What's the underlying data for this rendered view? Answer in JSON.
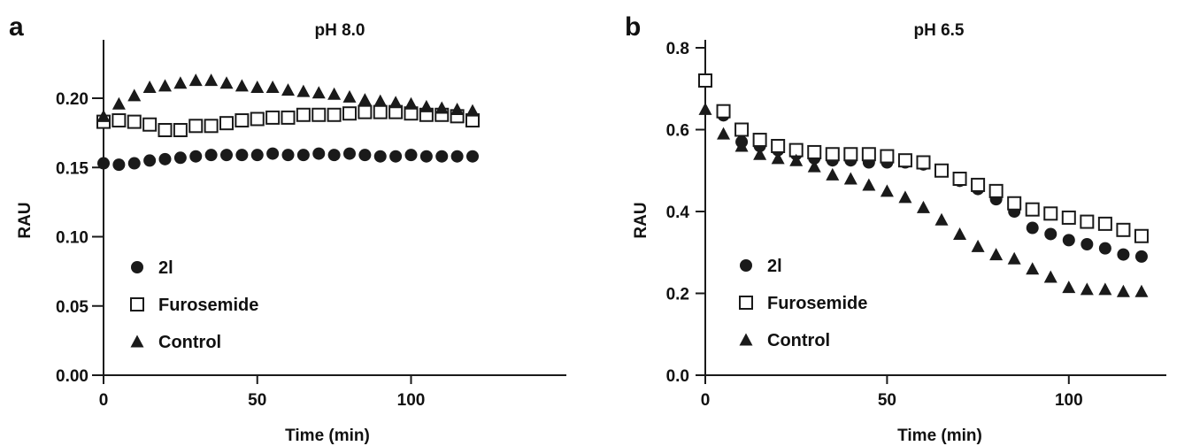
{
  "chart_data": [
    {
      "panel": "a",
      "type": "scatter",
      "title": "pH 8.0",
      "xlabel": "Time (min)",
      "ylabel": "RAU",
      "xlim": [
        0,
        125
      ],
      "ylim": [
        0,
        0.2
      ],
      "xticks": [
        "0",
        "50",
        "100"
      ],
      "xtick_values": [
        0,
        50,
        100
      ],
      "yticks": [
        "0.00",
        "0.05",
        "0.10",
        "0.15",
        "0.20"
      ],
      "ytick_values": [
        0,
        0.05,
        0.1,
        0.15,
        0.2
      ],
      "legend": "bottom-left",
      "series": [
        {
          "name": "2l",
          "marker": "circle",
          "x": [
            0,
            5,
            10,
            15,
            20,
            25,
            30,
            35,
            40,
            45,
            50,
            55,
            60,
            65,
            70,
            75,
            80,
            85,
            90,
            95,
            100,
            105,
            110,
            115,
            120
          ],
          "y": [
            0.153,
            0.152,
            0.153,
            0.155,
            0.156,
            0.157,
            0.158,
            0.159,
            0.159,
            0.159,
            0.159,
            0.16,
            0.159,
            0.159,
            0.16,
            0.159,
            0.16,
            0.159,
            0.158,
            0.158,
            0.159,
            0.158,
            0.158,
            0.158,
            0.158
          ]
        },
        {
          "name": "Furosemide",
          "marker": "open-square",
          "x": [
            0,
            5,
            10,
            15,
            20,
            25,
            30,
            35,
            40,
            45,
            50,
            55,
            60,
            65,
            70,
            75,
            80,
            85,
            90,
            95,
            100,
            105,
            110,
            115,
            120
          ],
          "y": [
            0.183,
            0.184,
            0.183,
            0.181,
            0.177,
            0.177,
            0.18,
            0.18,
            0.182,
            0.184,
            0.185,
            0.186,
            0.186,
            0.188,
            0.188,
            0.188,
            0.189,
            0.19,
            0.19,
            0.19,
            0.189,
            0.188,
            0.188,
            0.187,
            0.184
          ]
        },
        {
          "name": "Control",
          "marker": "triangle",
          "x": [
            0,
            5,
            10,
            15,
            20,
            25,
            30,
            35,
            40,
            45,
            50,
            55,
            60,
            65,
            70,
            75,
            80,
            85,
            90,
            95,
            100,
            105,
            110,
            115,
            120
          ],
          "y": [
            0.187,
            0.196,
            0.202,
            0.208,
            0.209,
            0.211,
            0.213,
            0.213,
            0.211,
            0.209,
            0.208,
            0.208,
            0.206,
            0.205,
            0.204,
            0.203,
            0.201,
            0.199,
            0.198,
            0.197,
            0.196,
            0.194,
            0.193,
            0.192,
            0.191
          ]
        }
      ]
    },
    {
      "panel": "b",
      "type": "scatter",
      "title": "pH 6.5",
      "xlabel": "Time (min)",
      "ylabel": "RAU",
      "xlim": [
        0,
        125
      ],
      "ylim": [
        0,
        0.8
      ],
      "xticks": [
        "0",
        "50",
        "100"
      ],
      "xtick_values": [
        0,
        50,
        100
      ],
      "yticks": [
        "0.0",
        "0.2",
        "0.4",
        "0.6",
        "0.8"
      ],
      "ytick_values": [
        0,
        0.2,
        0.4,
        0.6,
        0.8
      ],
      "legend": "bottom-left",
      "series": [
        {
          "name": "2l",
          "marker": "circle",
          "x": [
            0,
            5,
            10,
            15,
            20,
            25,
            30,
            35,
            40,
            45,
            50,
            55,
            60,
            65,
            70,
            75,
            80,
            85,
            90,
            95,
            100,
            105,
            110,
            115,
            120
          ],
          "y": [
            0.72,
            0.635,
            0.57,
            0.56,
            0.55,
            0.54,
            0.53,
            0.525,
            0.525,
            0.52,
            0.52,
            0.52,
            0.515,
            0.5,
            0.475,
            0.455,
            0.43,
            0.4,
            0.36,
            0.345,
            0.33,
            0.32,
            0.31,
            0.295,
            0.29
          ]
        },
        {
          "name": "Furosemide",
          "marker": "open-square",
          "x": [
            0,
            5,
            10,
            15,
            20,
            25,
            30,
            35,
            40,
            45,
            50,
            55,
            60,
            65,
            70,
            75,
            80,
            85,
            90,
            95,
            100,
            105,
            110,
            115,
            120
          ],
          "y": [
            0.72,
            0.645,
            0.6,
            0.575,
            0.56,
            0.55,
            0.545,
            0.54,
            0.54,
            0.54,
            0.535,
            0.525,
            0.52,
            0.5,
            0.48,
            0.465,
            0.45,
            0.42,
            0.405,
            0.395,
            0.385,
            0.375,
            0.37,
            0.355,
            0.34
          ]
        },
        {
          "name": "Control",
          "marker": "triangle",
          "x": [
            0,
            5,
            10,
            15,
            20,
            25,
            30,
            35,
            40,
            45,
            50,
            55,
            60,
            65,
            70,
            75,
            80,
            85,
            90,
            95,
            100,
            105,
            110,
            115,
            120
          ],
          "y": [
            0.65,
            0.59,
            0.56,
            0.54,
            0.53,
            0.525,
            0.51,
            0.49,
            0.48,
            0.465,
            0.45,
            0.435,
            0.41,
            0.38,
            0.345,
            0.315,
            0.295,
            0.285,
            0.26,
            0.24,
            0.215,
            0.21,
            0.21,
            0.205,
            0.205
          ]
        }
      ]
    }
  ]
}
